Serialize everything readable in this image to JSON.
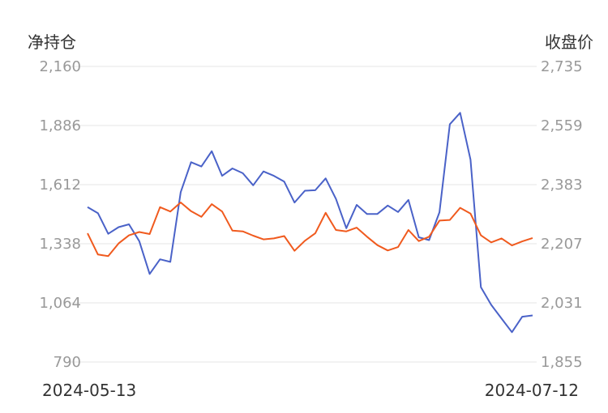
{
  "chart_data": {
    "type": "line",
    "left_axis_title": "净持仓",
    "right_axis_title": "收盘价",
    "x_start_label": "2024-05-13",
    "x_end_label": "2024-07-12",
    "left_ticks": [
      "2,160",
      "1,886",
      "1,612",
      "1,338",
      "1,064",
      "790"
    ],
    "right_ticks": [
      "2,735",
      "2,559",
      "2,383",
      "2,207",
      "2,031",
      "1,855"
    ],
    "left_ylim": [
      790,
      2160
    ],
    "right_ylim": [
      1855,
      2735
    ],
    "grid": true,
    "series": [
      {
        "axis": "left",
        "color": "#4a62c8",
        "values": [
          1508,
          1480,
          1384,
          1415,
          1428,
          1350,
          1198,
          1266,
          1254,
          1577,
          1716,
          1696,
          1767,
          1653,
          1687,
          1665,
          1609,
          1673,
          1653,
          1626,
          1529,
          1584,
          1586,
          1641,
          1546,
          1410,
          1518,
          1476,
          1476,
          1515,
          1485,
          1541,
          1368,
          1355,
          1484,
          1892,
          1945,
          1728,
          1137,
          1055,
          991,
          928,
          1000,
          1006
        ]
      },
      {
        "axis": "right",
        "color": "#f05a1e",
        "values": [
          2238,
          2175,
          2170,
          2208,
          2232,
          2242,
          2236,
          2316,
          2303,
          2330,
          2304,
          2287,
          2325,
          2303,
          2246,
          2244,
          2231,
          2220,
          2223,
          2230,
          2186,
          2216,
          2238,
          2299,
          2248,
          2244,
          2255,
          2228,
          2203,
          2187,
          2197,
          2248,
          2215,
          2228,
          2276,
          2278,
          2314,
          2297,
          2232,
          2211,
          2223,
          2202,
          2214,
          2224
        ]
      }
    ]
  }
}
